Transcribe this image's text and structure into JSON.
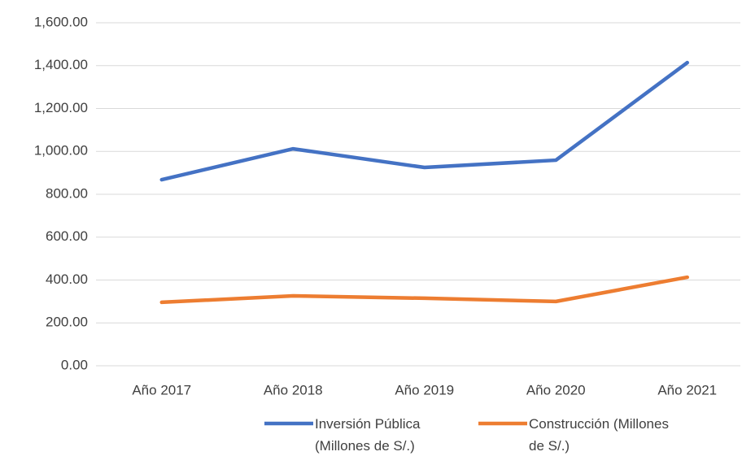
{
  "chart_data": {
    "type": "line",
    "categories": [
      "Año 2017",
      "Año 2018",
      "Año 2019",
      "Año 2020",
      "Año 2021"
    ],
    "series": [
      {
        "name": "Inversión Pública (Millones de S/.)",
        "color": "#4472c4",
        "values": [
          868,
          1012,
          925,
          959,
          1414
        ]
      },
      {
        "name": "Construcción (Millones de S/.)",
        "color": "#ed7d31",
        "values": [
          296,
          326,
          315,
          300,
          413
        ]
      }
    ],
    "ylim": [
      0,
      1600
    ],
    "yticks": [
      {
        "value": 0,
        "label": "0.00"
      },
      {
        "value": 200,
        "label": "200.00"
      },
      {
        "value": 400,
        "label": "400.00"
      },
      {
        "value": 600,
        "label": "600.00"
      },
      {
        "value": 800,
        "label": "800.00"
      },
      {
        "value": 1000,
        "label": "1,000.00"
      },
      {
        "value": 1200,
        "label": "1,200.00"
      },
      {
        "value": 1400,
        "label": "1,400.00"
      },
      {
        "value": 1600,
        "label": "1,600.00"
      }
    ],
    "grid": true,
    "legend": "bottom"
  }
}
